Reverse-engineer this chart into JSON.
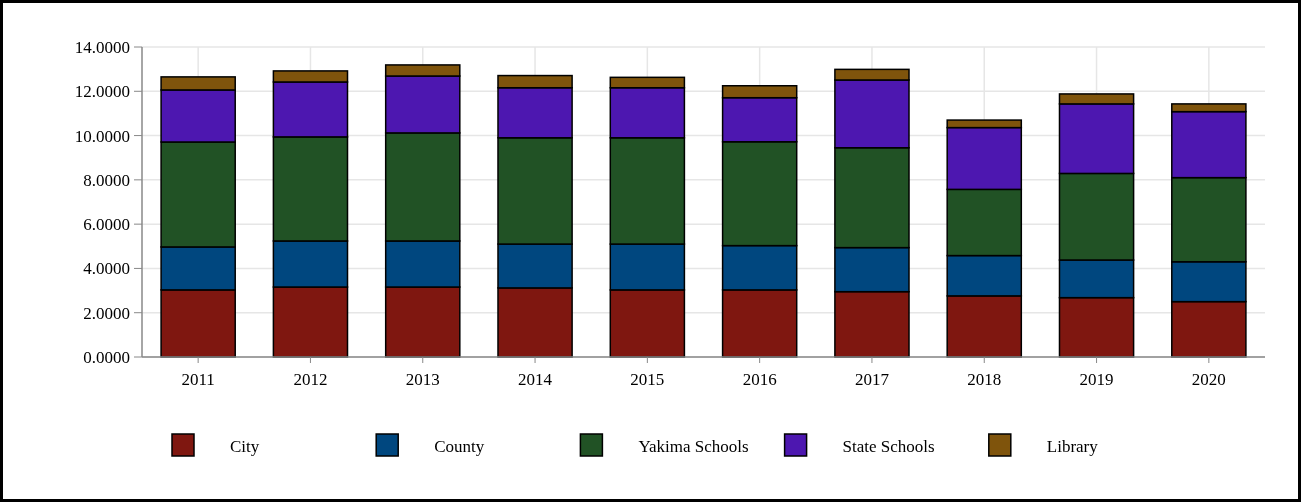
{
  "chart_data": {
    "type": "bar",
    "stacked": true,
    "categories": [
      "2011",
      "2012",
      "2013",
      "2014",
      "2015",
      "2016",
      "2017",
      "2018",
      "2019",
      "2020"
    ],
    "series": [
      {
        "name": "City",
        "color": "#7f1710",
        "values": [
          3.03,
          3.16,
          3.16,
          3.12,
          3.03,
          3.03,
          2.95,
          2.76,
          2.68,
          2.5
        ]
      },
      {
        "name": "County",
        "color": "#00477f",
        "values": [
          1.94,
          2.08,
          2.08,
          1.98,
          2.07,
          2.0,
          1.99,
          1.82,
          1.7,
          1.8
        ]
      },
      {
        "name": "Yakima Schools",
        "color": "#215225",
        "values": [
          4.74,
          4.7,
          4.88,
          4.8,
          4.8,
          4.69,
          4.51,
          2.99,
          3.91,
          3.8
        ]
      },
      {
        "name": "State Schools",
        "color": "#4d17b0",
        "values": [
          2.35,
          2.48,
          2.57,
          2.26,
          2.26,
          1.99,
          3.06,
          2.79,
          3.14,
          2.98
        ]
      },
      {
        "name": "Library",
        "color": "#7f540c",
        "values": [
          0.59,
          0.5,
          0.5,
          0.55,
          0.47,
          0.54,
          0.48,
          0.34,
          0.45,
          0.35
        ]
      }
    ],
    "ylim": [
      0,
      14
    ],
    "yticks": [
      {
        "value": 0,
        "label": "0.0000"
      },
      {
        "value": 2,
        "label": "2.0000"
      },
      {
        "value": 4,
        "label": "4.0000"
      },
      {
        "value": 6,
        "label": "6.0000"
      },
      {
        "value": 8,
        "label": "8.0000"
      },
      {
        "value": 10,
        "label": "10.0000"
      },
      {
        "value": 12,
        "label": "12.0000"
      },
      {
        "value": 14,
        "label": "14.0000"
      }
    ],
    "grid": true,
    "legend": "bottom"
  }
}
